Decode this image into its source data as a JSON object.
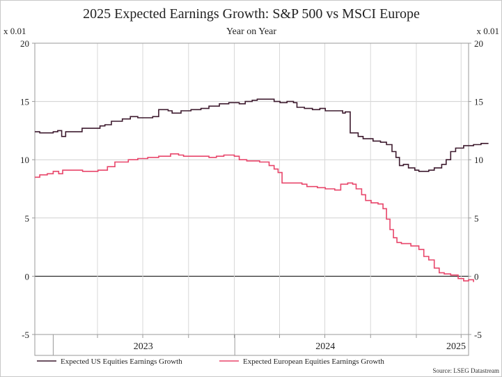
{
  "chart_data": {
    "type": "line",
    "title": "2025 Expected Earnings Growth: S&P 500 vs MSCI Europe",
    "subtitle": "Year on Year",
    "y_unit_left": "x 0.01",
    "y_unit_right": "x 0.01",
    "source": "Source: LSEG Datastream",
    "ylim": [
      -5,
      20
    ],
    "yticks": [
      "20",
      "15",
      "10",
      "5",
      "0",
      "-5"
    ],
    "xlim": [
      "2022-11-25",
      "2025-04-15"
    ],
    "x_labels": [
      {
        "label": "2023",
        "at": "2023-07-01"
      },
      {
        "label": "2024",
        "at": "2024-07-01"
      },
      {
        "label": "2025",
        "at": "2025-07-01"
      }
    ],
    "x_ticks": [
      "2023-03-31",
      "2023-06-30",
      "2023-09-30",
      "2023-12-31",
      "2024-03-31",
      "2024-06-30",
      "2024-09-30",
      "2024-12-31",
      "2025-03-31"
    ],
    "year_boundaries": [
      "2023-01-01",
      "2024-01-01"
    ],
    "grid": true,
    "zero_line": true,
    "legend_position": "bottom",
    "series": [
      {
        "name": "Expected US Equities Earnings Growth",
        "color": "#3d1a2e",
        "points": [
          [
            "2022-11-25",
            12.4
          ],
          [
            "2022-12-05",
            12.3
          ],
          [
            "2023-01-01",
            12.4
          ],
          [
            "2023-01-10",
            12.5
          ],
          [
            "2023-01-18",
            12.0
          ],
          [
            "2023-01-26",
            12.4
          ],
          [
            "2023-02-20",
            12.4
          ],
          [
            "2023-02-28",
            12.7
          ],
          [
            "2023-04-05",
            12.9
          ],
          [
            "2023-04-15",
            13.0
          ],
          [
            "2023-04-28",
            13.3
          ],
          [
            "2023-05-20",
            13.5
          ],
          [
            "2023-06-05",
            13.7
          ],
          [
            "2023-06-20",
            13.6
          ],
          [
            "2023-07-20",
            13.7
          ],
          [
            "2023-08-01",
            14.3
          ],
          [
            "2023-08-20",
            14.2
          ],
          [
            "2023-08-28",
            14.0
          ],
          [
            "2023-09-15",
            14.2
          ],
          [
            "2023-10-05",
            14.3
          ],
          [
            "2023-10-25",
            14.4
          ],
          [
            "2023-11-10",
            14.6
          ],
          [
            "2023-12-01",
            14.8
          ],
          [
            "2023-12-20",
            14.9
          ],
          [
            "2024-01-10",
            14.8
          ],
          [
            "2024-01-22",
            15.0
          ],
          [
            "2024-02-05",
            15.1
          ],
          [
            "2024-02-15",
            15.2
          ],
          [
            "2024-03-10",
            15.2
          ],
          [
            "2024-03-20",
            15.0
          ],
          [
            "2024-04-01",
            14.9
          ],
          [
            "2024-04-15",
            15.0
          ],
          [
            "2024-04-28",
            14.9
          ],
          [
            "2024-05-05",
            14.5
          ],
          [
            "2024-05-20",
            14.4
          ],
          [
            "2024-06-05",
            14.3
          ],
          [
            "2024-06-20",
            14.4
          ],
          [
            "2024-07-01",
            14.2
          ],
          [
            "2024-07-25",
            14.2
          ],
          [
            "2024-08-05",
            14.0
          ],
          [
            "2024-08-10",
            14.1
          ],
          [
            "2024-08-20",
            12.3
          ],
          [
            "2024-09-05",
            12.0
          ],
          [
            "2024-09-15",
            11.8
          ],
          [
            "2024-10-05",
            11.6
          ],
          [
            "2024-10-20",
            11.5
          ],
          [
            "2024-11-01",
            11.3
          ],
          [
            "2024-11-12",
            10.7
          ],
          [
            "2024-11-20",
            10.2
          ],
          [
            "2024-11-27",
            9.5
          ],
          [
            "2024-12-05",
            9.6
          ],
          [
            "2024-12-15",
            9.3
          ],
          [
            "2024-12-28",
            9.1
          ],
          [
            "2025-01-05",
            9.0
          ],
          [
            "2025-01-25",
            9.1
          ],
          [
            "2025-02-05",
            9.3
          ],
          [
            "2025-02-20",
            9.6
          ],
          [
            "2025-03-01",
            10.0
          ],
          [
            "2025-03-10",
            10.7
          ],
          [
            "2025-03-20",
            11.0
          ],
          [
            "2025-04-05",
            11.2
          ],
          [
            "2025-04-25",
            11.3
          ],
          [
            "2025-05-10",
            11.4
          ],
          [
            "2025-05-25",
            11.4
          ]
        ]
      },
      {
        "name": "Expected European Equities Earnings Growth",
        "color": "#e8456a",
        "points": [
          [
            "2022-11-25",
            8.5
          ],
          [
            "2022-12-05",
            8.7
          ],
          [
            "2022-12-20",
            8.8
          ],
          [
            "2023-01-01",
            9.0
          ],
          [
            "2023-01-12",
            8.8
          ],
          [
            "2023-01-20",
            9.1
          ],
          [
            "2023-02-05",
            9.1
          ],
          [
            "2023-03-01",
            9.0
          ],
          [
            "2023-04-01",
            9.1
          ],
          [
            "2023-04-20",
            9.4
          ],
          [
            "2023-05-05",
            9.8
          ],
          [
            "2023-05-20",
            9.8
          ],
          [
            "2023-06-01",
            10.0
          ],
          [
            "2023-06-20",
            10.1
          ],
          [
            "2023-07-10",
            10.2
          ],
          [
            "2023-08-01",
            10.3
          ],
          [
            "2023-08-25",
            10.5
          ],
          [
            "2023-09-10",
            10.4
          ],
          [
            "2023-09-20",
            10.3
          ],
          [
            "2023-10-20",
            10.3
          ],
          [
            "2023-11-10",
            10.2
          ],
          [
            "2023-11-25",
            10.3
          ],
          [
            "2023-12-10",
            10.4
          ],
          [
            "2023-12-31",
            10.3
          ],
          [
            "2024-01-10",
            10.0
          ],
          [
            "2024-01-25",
            9.9
          ],
          [
            "2024-02-20",
            9.8
          ],
          [
            "2024-03-01",
            9.8
          ],
          [
            "2024-03-10",
            9.5
          ],
          [
            "2024-03-20",
            9.2
          ],
          [
            "2024-03-28",
            8.9
          ],
          [
            "2024-04-05",
            8.0
          ],
          [
            "2024-04-20",
            8.0
          ],
          [
            "2024-05-15",
            7.9
          ],
          [
            "2024-05-25",
            7.7
          ],
          [
            "2024-06-15",
            7.6
          ],
          [
            "2024-07-01",
            7.5
          ],
          [
            "2024-07-20",
            7.4
          ],
          [
            "2024-08-01",
            7.9
          ],
          [
            "2024-08-15",
            8.0
          ],
          [
            "2024-08-25",
            7.9
          ],
          [
            "2024-09-01",
            7.5
          ],
          [
            "2024-09-12",
            7.0
          ],
          [
            "2024-09-20",
            6.5
          ],
          [
            "2024-10-01",
            6.3
          ],
          [
            "2024-10-15",
            6.2
          ],
          [
            "2024-10-25",
            5.8
          ],
          [
            "2024-11-01",
            4.9
          ],
          [
            "2024-11-08",
            4.0
          ],
          [
            "2024-11-15",
            3.3
          ],
          [
            "2024-11-22",
            2.9
          ],
          [
            "2024-12-01",
            2.8
          ],
          [
            "2024-12-20",
            2.6
          ],
          [
            "2025-01-05",
            2.3
          ],
          [
            "2025-01-15",
            1.7
          ],
          [
            "2025-01-25",
            1.4
          ],
          [
            "2025-02-05",
            0.7
          ],
          [
            "2025-02-15",
            0.3
          ],
          [
            "2025-02-25",
            0.2
          ],
          [
            "2025-03-10",
            0.1
          ],
          [
            "2025-03-25",
            -0.2
          ],
          [
            "2025-04-05",
            -0.4
          ],
          [
            "2025-04-15",
            -0.3
          ],
          [
            "2025-04-25",
            -0.5
          ]
        ]
      }
    ]
  }
}
